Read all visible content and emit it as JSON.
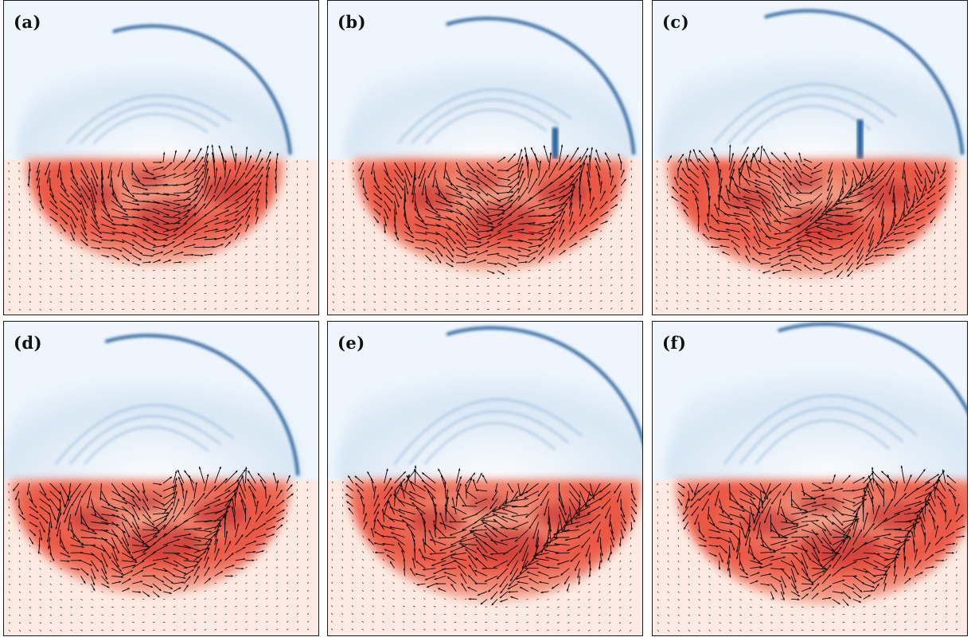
{
  "figure": {
    "panels": [
      {
        "label": "(a)"
      },
      {
        "label": "(b)"
      },
      {
        "label": "(c)"
      },
      {
        "label": "(d)"
      },
      {
        "label": "(e)"
      },
      {
        "label": "(f)"
      }
    ]
  },
  "colors": {
    "blue_background": "#eef5fc",
    "blue_field": "#d6e6f4",
    "blue_front": "#0b4d8f",
    "red_background": "#fdebe3",
    "red_field": "#e9442f",
    "red_dark": "#b3121b",
    "arrow": "#000000"
  }
}
